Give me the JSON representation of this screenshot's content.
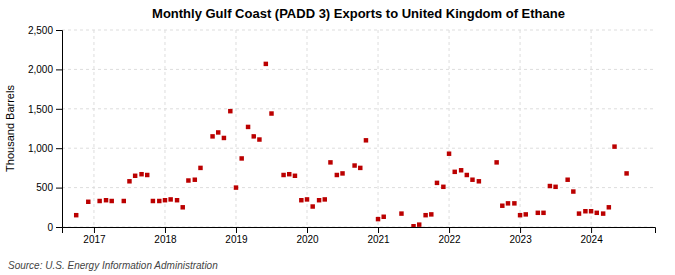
{
  "chart_data": {
    "type": "scatter",
    "title": "Monthly Gulf Coast (PADD 3) Exports to United Kingdom of Ethane",
    "ylabel": "Thousand Barrels",
    "source": "Source: U.S. Energy Information Administration",
    "color": "#bb0000",
    "marker": "square",
    "grid": true,
    "xlim": [
      2016.55,
      2024.9
    ],
    "xticks": [
      2017,
      2018,
      2019,
      2020,
      2021,
      2022,
      2023,
      2024
    ],
    "ylim": [
      0,
      2500
    ],
    "yticks": [
      0,
      500,
      {
        "value": 1000,
        "label": "1,000"
      },
      {
        "value": 1500,
        "label": "1,500"
      },
      {
        "value": 2000,
        "label": "2,000"
      },
      {
        "value": 2500,
        "label": "2,500"
      }
    ],
    "x": [
      2016.75,
      2016.92,
      2017.08,
      2017.17,
      2017.25,
      2017.42,
      2017.5,
      2017.58,
      2017.67,
      2017.75,
      2017.83,
      2017.92,
      2018.0,
      2018.08,
      2018.17,
      2018.25,
      2018.33,
      2018.42,
      2018.5,
      2018.67,
      2018.75,
      2018.83,
      2018.92,
      2019.0,
      2019.08,
      2019.17,
      2019.25,
      2019.33,
      2019.42,
      2019.5,
      2019.67,
      2019.75,
      2019.83,
      2019.92,
      2020.0,
      2020.08,
      2020.17,
      2020.25,
      2020.33,
      2020.42,
      2020.5,
      2020.67,
      2020.75,
      2020.83,
      2021.0,
      2021.08,
      2021.33,
      2021.5,
      2021.58,
      2021.67,
      2021.75,
      2021.83,
      2021.92,
      2022.0,
      2022.08,
      2022.17,
      2022.25,
      2022.33,
      2022.42,
      2022.67,
      2022.75,
      2022.83,
      2022.92,
      2023.0,
      2023.08,
      2023.25,
      2023.33,
      2023.42,
      2023.5,
      2023.67,
      2023.75,
      2023.83,
      2023.92,
      2024.0,
      2024.08,
      2024.17,
      2024.25,
      2024.33,
      2024.5
    ],
    "values": [
      150,
      320,
      330,
      340,
      330,
      330,
      580,
      650,
      670,
      660,
      330,
      330,
      340,
      350,
      340,
      250,
      590,
      600,
      750,
      1150,
      1200,
      1130,
      1470,
      500,
      870,
      1270,
      1150,
      1110,
      2070,
      1440,
      660,
      670,
      650,
      340,
      350,
      260,
      340,
      350,
      820,
      660,
      680,
      780,
      750,
      1100,
      100,
      130,
      170,
      10,
      30,
      150,
      160,
      560,
      510,
      930,
      700,
      720,
      660,
      600,
      580,
      820,
      270,
      300,
      300,
      150,
      160,
      180,
      180,
      520,
      510,
      600,
      450,
      170,
      200,
      200,
      180,
      170,
      250,
      1020,
      680
    ]
  }
}
